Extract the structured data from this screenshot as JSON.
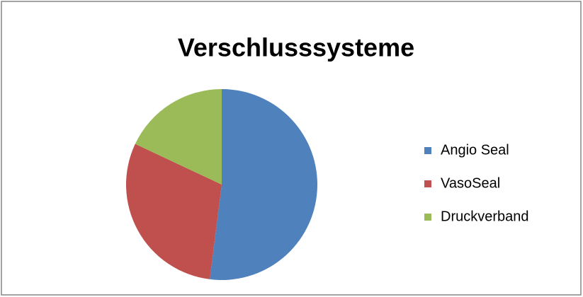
{
  "chart_data": {
    "type": "pie",
    "title": "Verschlusssysteme",
    "categories": [
      "Angio Seal",
      "VasoSeal",
      "Druckverband"
    ],
    "values": [
      52,
      30,
      18
    ],
    "colors": [
      "#4f81bd",
      "#c0504d",
      "#9bbb59"
    ],
    "legend": "right"
  }
}
